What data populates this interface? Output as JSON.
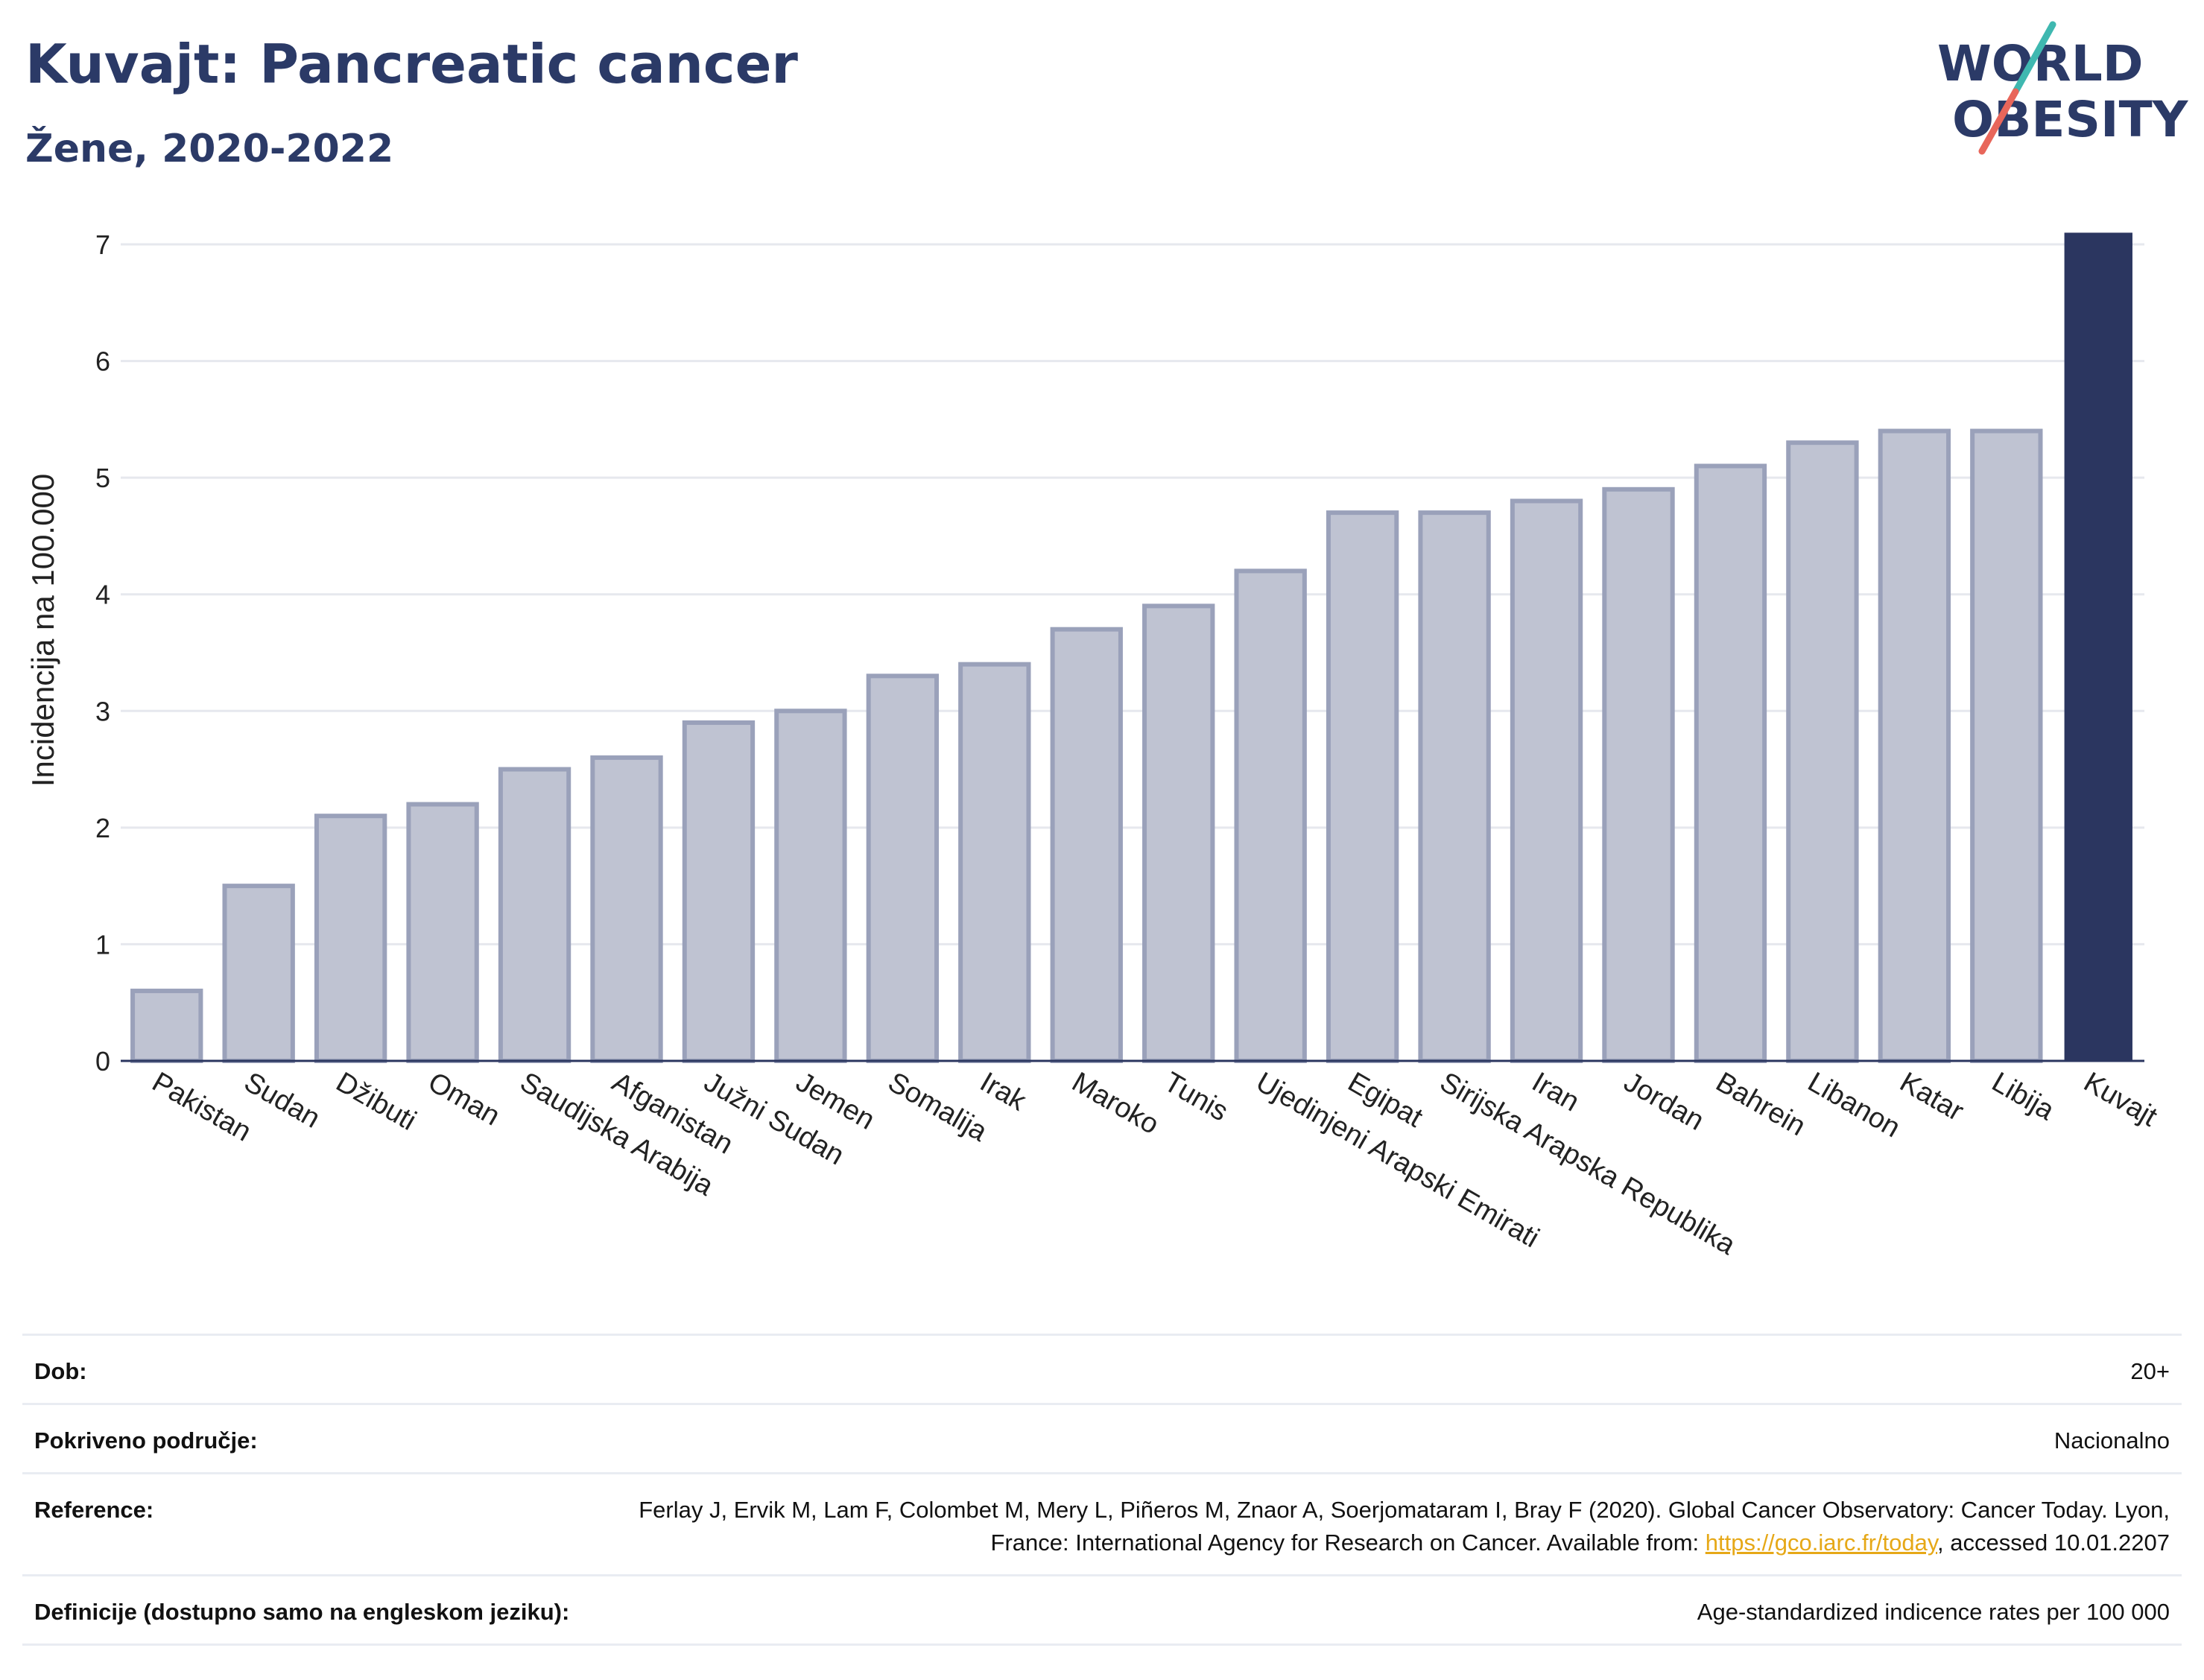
{
  "header": {
    "title": "Kuvajt: Pancreatic cancer",
    "subtitle": "Žene, 2020-2022"
  },
  "logo": {
    "line1": "WORLD",
    "line2": "OBESITY",
    "accent_teal": "#3fb8b0",
    "accent_red": "#e8665a"
  },
  "colors": {
    "bar": "#bfc3d2",
    "bar_border": "#9aa1ba",
    "highlight": "#2b3660",
    "axis": "#2b3660",
    "title": "#2b3a67"
  },
  "chart_data": {
    "type": "bar",
    "ylabel": "Incidencija na 100.000",
    "ylim": [
      0,
      7.2
    ],
    "yticks": [
      0,
      1,
      2,
      3,
      4,
      5,
      6,
      7
    ],
    "grid": true,
    "highlight": "Kuvajt",
    "categories": [
      "Pakistan",
      "Sudan",
      "Džibuti",
      "Oman",
      "Saudijska Arabija",
      "Afganistan",
      "Južni Sudan",
      "Jemen",
      "Somalija",
      "Irak",
      "Maroko",
      "Tunis",
      "Ujedinjeni Arapski Emirati",
      "Egipat",
      "Sirijska Arapska Republika",
      "Iran",
      "Jordan",
      "Bahrein",
      "Libanon",
      "Katar",
      "Libija",
      "Kuvajt"
    ],
    "values": [
      0.6,
      1.5,
      2.1,
      2.2,
      2.5,
      2.6,
      2.9,
      3.0,
      3.3,
      3.4,
      3.7,
      3.9,
      4.2,
      4.7,
      4.7,
      4.8,
      4.9,
      5.1,
      5.3,
      5.4,
      5.4,
      7.1
    ]
  },
  "info": {
    "age_label": "Dob:",
    "age_value": "20+",
    "coverage_label": "Pokriveno područje:",
    "coverage_value": "Nacionalno",
    "reference_label": "Reference:",
    "reference_text_1": "Ferlay J, Ervik M, Lam F, Colombet M, Mery L, Piñeros M, Znaor A, Soerjomataram I, Bray F (2020). Global Cancer Observatory: Cancer Today. Lyon, France: International Agency for Research on Cancer. Available from: ",
    "reference_link": "https://gco.iarc.fr/today",
    "reference_text_2": ", accessed 10.01.2207",
    "definitions_label": "Definicije (dostupno samo na engleskom jeziku):",
    "definitions_value": "Age-standardized indicence rates per 100 000"
  }
}
